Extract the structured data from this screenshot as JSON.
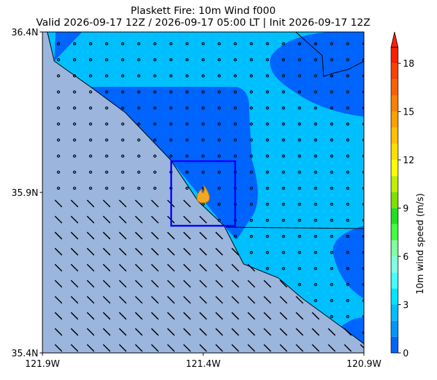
{
  "chart_data": {
    "type": "map",
    "title": "Plaskett Fire: 10m Wind f000",
    "subtitle": "Valid 2026-09-17 12Z / 2026-09-17 05:00 LT | Init 2026-09-17 12Z",
    "xlim": [
      -121.9,
      -120.9
    ],
    "ylim": [
      35.4,
      36.4
    ],
    "xticks": [
      {
        "value": -121.9,
        "label": "121.9W"
      },
      {
        "value": -121.4,
        "label": "121.4W"
      },
      {
        "value": -120.9,
        "label": "120.9W"
      }
    ],
    "yticks": [
      {
        "value": 35.4,
        "label": "35.4N"
      },
      {
        "value": 35.9,
        "label": "35.9N"
      },
      {
        "value": 36.4,
        "label": "36.4N"
      }
    ],
    "colorbar": {
      "label": "10m wind speed (m/s)",
      "lim": [
        0,
        19
      ],
      "ticks": [
        0,
        3,
        6,
        9,
        12,
        15,
        18
      ],
      "colors": [
        "#0064ff",
        "#0096ff",
        "#00bfff",
        "#00e5ff",
        "#40ffff",
        "#80ffe0",
        "#80ffa0",
        "#40ff40",
        "#20e020",
        "#80e000",
        "#c0f000",
        "#ffff00",
        "#ffe000",
        "#ffc000",
        "#ffa000",
        "#ff8000",
        "#ff6000",
        "#ff4000",
        "#ff2000"
      ]
    }
  }
}
